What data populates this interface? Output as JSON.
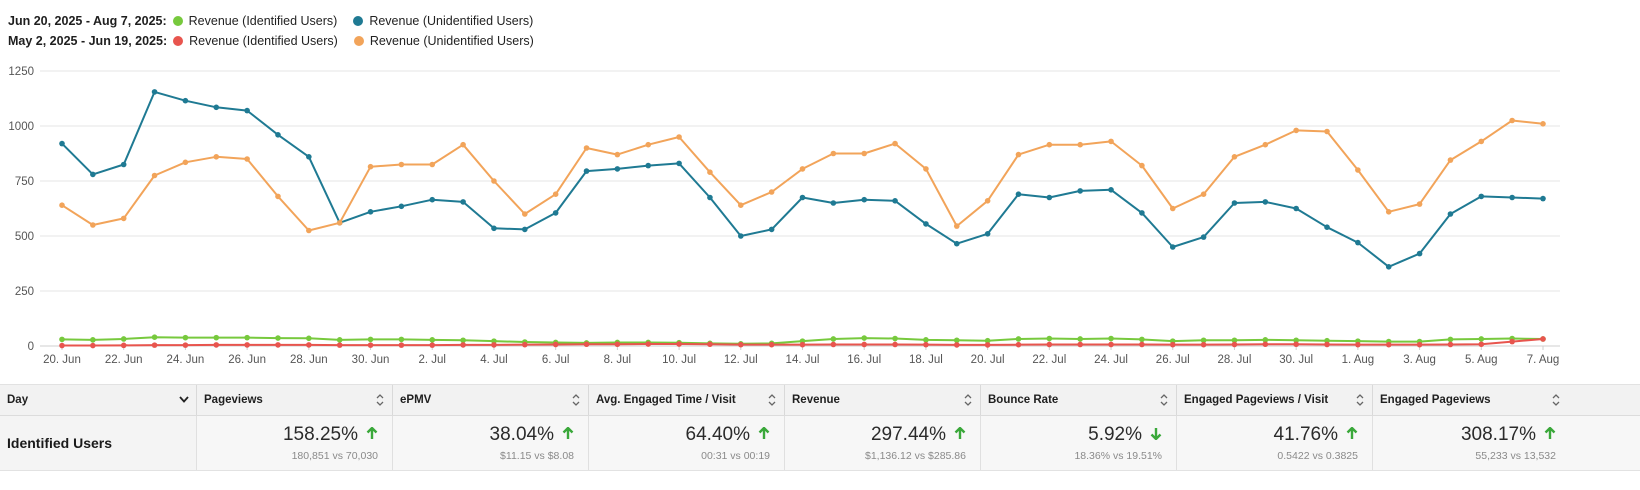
{
  "legend": {
    "periods": [
      {
        "label": "Jun 20, 2025 - Aug 7, 2025:",
        "items": [
          {
            "name": "Revenue (Identified Users)",
            "color": "#77c93d"
          },
          {
            "name": "Revenue (Unidentified Users)",
            "color": "#1f7a93"
          }
        ]
      },
      {
        "label": "May 2, 2025 - Jun 19, 2025:",
        "items": [
          {
            "name": "Revenue (Identified Users)",
            "color": "#e8554e"
          },
          {
            "name": "Revenue (Unidentified Users)",
            "color": "#f2a45a"
          }
        ]
      }
    ]
  },
  "chart_data": {
    "type": "line",
    "x_tick_labels": [
      "20. Jun",
      "22. Jun",
      "24. Jun",
      "26. Jun",
      "28. Jun",
      "30. Jun",
      "2. Jul",
      "4. Jul",
      "6. Jul",
      "8. Jul",
      "10. Jul",
      "12. Jul",
      "14. Jul",
      "16. Jul",
      "18. Jul",
      "20. Jul",
      "22. Jul",
      "24. Jul",
      "26. Jul",
      "28. Jul",
      "30. Jul",
      "1. Aug",
      "3. Aug",
      "5. Aug",
      "7. Aug"
    ],
    "y_ticks": [
      0,
      250,
      500,
      750,
      1000,
      1250
    ],
    "ylim": [
      0,
      1250
    ],
    "num_points": 49,
    "grid": true,
    "series": [
      {
        "name": "Revenue (Unidentified Users)",
        "period": "Jun 20, 2025 - Aug 7, 2025",
        "color": "#1f7a93",
        "values": [
          920,
          780,
          825,
          1155,
          1115,
          1085,
          1070,
          960,
          860,
          560,
          610,
          635,
          665,
          655,
          535,
          530,
          605,
          795,
          805,
          820,
          830,
          675,
          500,
          530,
          675,
          650,
          665,
          660,
          555,
          465,
          510,
          690,
          675,
          705,
          710,
          605,
          450,
          495,
          650,
          655,
          625,
          540,
          470,
          360,
          420,
          600,
          680,
          675,
          670
        ]
      },
      {
        "name": "Revenue (Unidentified Users)",
        "period": "May 2, 2025 - Jun 19, 2025",
        "color": "#f2a45a",
        "values": [
          640,
          550,
          580,
          775,
          835,
          860,
          850,
          680,
          525,
          560,
          815,
          825,
          825,
          915,
          750,
          600,
          690,
          900,
          870,
          915,
          950,
          790,
          640,
          700,
          805,
          875,
          875,
          920,
          805,
          545,
          660,
          870,
          915,
          915,
          930,
          820,
          625,
          690,
          860,
          915,
          980,
          975,
          800,
          610,
          645,
          845,
          930,
          1025,
          1010
        ]
      },
      {
        "name": "Revenue (Identified Users)",
        "period": "Jun 20, 2025 - Aug 7, 2025",
        "color": "#77c93d",
        "values": [
          30,
          28,
          32,
          40,
          38,
          38,
          38,
          36,
          35,
          28,
          30,
          30,
          28,
          26,
          22,
          18,
          16,
          14,
          16,
          16,
          15,
          12,
          10,
          12,
          22,
          32,
          36,
          34,
          28,
          26,
          24,
          32,
          34,
          32,
          34,
          30,
          22,
          26,
          26,
          28,
          26,
          24,
          22,
          20,
          20,
          30,
          32,
          34,
          32
        ]
      },
      {
        "name": "Revenue (Identified Users)",
        "period": "May 2, 2025 - Jun 19, 2025",
        "color": "#e8554e",
        "values": [
          2,
          2,
          3,
          4,
          4,
          5,
          5,
          5,
          5,
          4,
          4,
          4,
          4,
          5,
          5,
          6,
          7,
          8,
          8,
          9,
          9,
          8,
          6,
          6,
          6,
          7,
          7,
          7,
          6,
          5,
          5,
          6,
          7,
          7,
          7,
          7,
          6,
          6,
          7,
          8,
          8,
          7,
          6,
          6,
          6,
          7,
          8,
          20,
          32
        ]
      }
    ]
  },
  "table": {
    "headers": [
      "Day",
      "Pageviews",
      "ePMV",
      "Avg. Engaged Time / Visit",
      "Revenue",
      "Bounce Rate",
      "Engaged Pageviews / Visit",
      "Engaged Pageviews"
    ],
    "row": {
      "label": "Identified Users",
      "cells": [
        {
          "value": "158.25%",
          "trend": "up",
          "compare": "180,851 vs 70,030"
        },
        {
          "value": "38.04%",
          "trend": "up",
          "compare": "$11.15 vs $8.08"
        },
        {
          "value": "64.40%",
          "trend": "up",
          "compare": "00:31 vs 00:19"
        },
        {
          "value": "297.44%",
          "trend": "up",
          "compare": "$1,136.12 vs $285.86"
        },
        {
          "value": "5.92%",
          "trend": "down",
          "compare": "18.36% vs 19.51%"
        },
        {
          "value": "41.76%",
          "trend": "up",
          "compare": "0.5422 vs 0.3825"
        },
        {
          "value": "308.17%",
          "trend": "up",
          "compare": "55,233 vs 13,532"
        }
      ]
    },
    "trend_color": "#3aa83a"
  }
}
